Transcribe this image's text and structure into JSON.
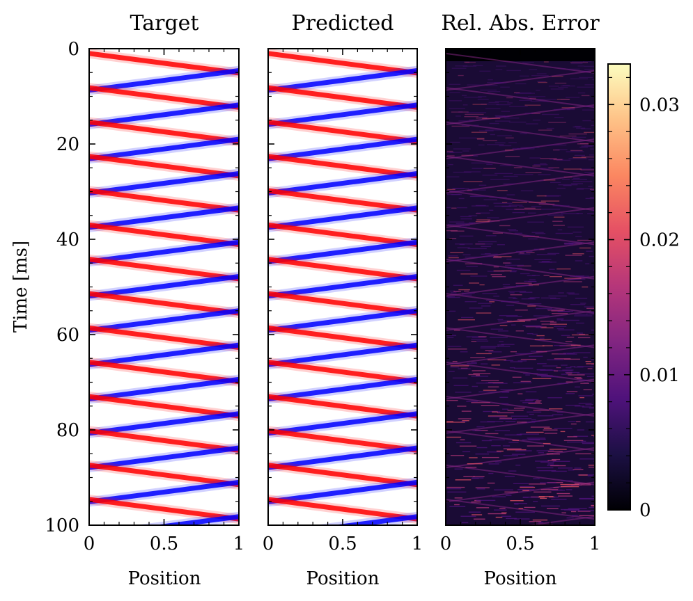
{
  "chart_data": [
    {
      "type": "heatmap",
      "panel": "target",
      "title": "Target",
      "xlabel": "Position",
      "ylabel": "Time [ms]",
      "xlim": [
        0,
        1
      ],
      "ylim": [
        100,
        0
      ],
      "xticks": [
        "0",
        "0.5",
        "1"
      ],
      "yticks": [
        "0",
        "20",
        "40",
        "60",
        "80",
        "100"
      ],
      "colormap": "bwr",
      "pattern": {
        "kind": "bouncing-pulse",
        "reflection_period_ms": 8.2,
        "first_red_start_ms": 1.0,
        "positive_color": "#ff0000",
        "negative_color": "#0000ff"
      }
    },
    {
      "type": "heatmap",
      "panel": "predicted",
      "title": "Predicted",
      "xlabel": "Position",
      "xlim": [
        0,
        1
      ],
      "ylim": [
        100,
        0
      ],
      "xticks": [
        "0",
        "0.5",
        "1"
      ],
      "colormap": "bwr",
      "pattern": {
        "kind": "bouncing-pulse",
        "reflection_period_ms": 8.2,
        "first_red_start_ms": 1.0,
        "positive_color": "#ff0000",
        "negative_color": "#0000ff"
      }
    },
    {
      "type": "heatmap",
      "panel": "error",
      "title": "Rel. Abs. Error",
      "xlabel": "Position",
      "xlim": [
        0,
        1
      ],
      "ylim": [
        100,
        0
      ],
      "xticks": [
        "0",
        "0.5",
        "1"
      ],
      "colormap": "magma",
      "colorbar": {
        "range": [
          0,
          0.033
        ],
        "ticks": [
          {
            "value": 0,
            "label": "0"
          },
          {
            "value": 0.01,
            "label": "0.01"
          },
          {
            "value": 0.02,
            "label": "0.02"
          },
          {
            "value": 0.03,
            "label": "0.03"
          }
        ],
        "stops": [
          "#000004",
          "#1c1044",
          "#4f127b",
          "#812581",
          "#b5367a",
          "#e55064",
          "#fb8761",
          "#fec287",
          "#fcfdbf"
        ]
      }
    }
  ]
}
